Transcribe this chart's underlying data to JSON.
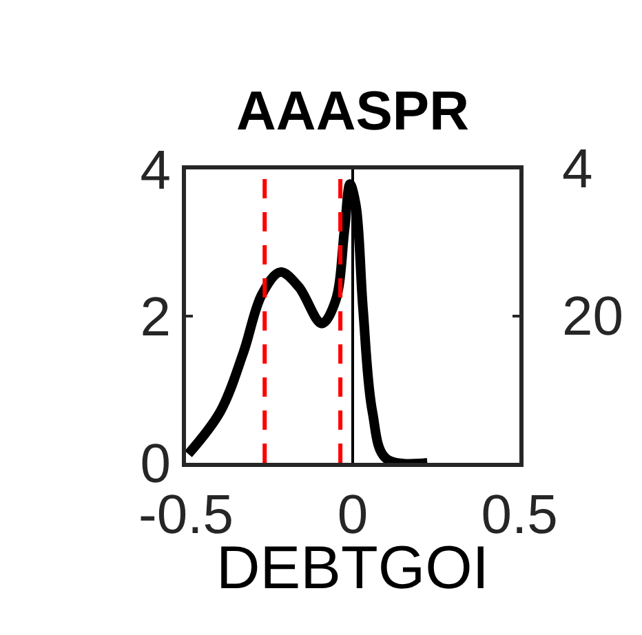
{
  "chart_data": {
    "type": "line",
    "title": "AAASPR",
    "x": [
      -0.493,
      -0.397,
      -0.328,
      -0.272,
      -0.217,
      -0.162,
      -0.093,
      -0.052,
      -0.024,
      -0.008,
      0.01,
      0.031,
      0.059,
      0.1,
      0.224
    ],
    "series": [
      {
        "color": "#000000",
        "values": [
          0.12,
          0.7,
          1.5,
          2.3,
          2.6,
          2.4,
          1.9,
          2.2,
          3.2,
          3.8,
          3.5,
          2.1,
          0.7,
          0.06,
          0
        ]
      }
    ],
    "xlim": [
      -0.5,
      0.5
    ],
    "xticks": [
      -0.5,
      0,
      0.5
    ],
    "ylim": [
      0,
      4
    ],
    "yticks": [
      0,
      2,
      4
    ],
    "ref_lines": [
      {
        "axis": "x",
        "value": -0.264,
        "color": "#ff0000",
        "line_style": "dashed"
      },
      {
        "axis": "x",
        "value": -0.037,
        "color": "#ff0000",
        "line_style": "dashed"
      },
      {
        "axis": "x",
        "value": 0,
        "color": "#000000",
        "line_style": "solid"
      }
    ],
    "annotations": [
      "4",
      "20",
      "DEBTGOI"
    ],
    "line_style": "solid",
    "marker": "none"
  }
}
